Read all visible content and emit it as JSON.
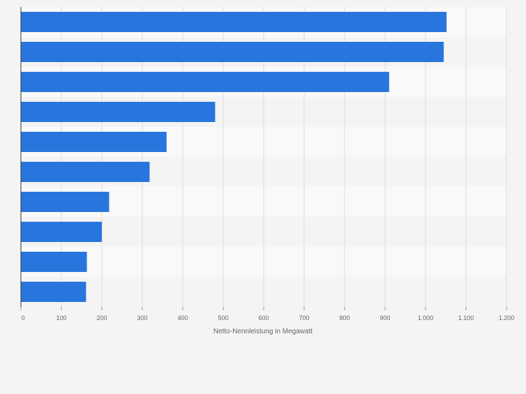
{
  "colors": {
    "background": "#f4f4f4",
    "bar": "#2876dd",
    "band_light": "#f9f9f9",
    "band_dark": "#f4f4f4",
    "grid": "#dddddd",
    "axis": "#333333",
    "tick_text": "#666666"
  },
  "chart_data": {
    "type": "bar",
    "orientation": "horizontal",
    "title": "",
    "xlabel": "Netto-Nennleistung in Megawatt",
    "ylabel": "",
    "categories": [
      "",
      "",
      "",
      "",
      "",
      "",
      "",
      "",
      "",
      ""
    ],
    "values": [
      1052,
      1045,
      910,
      480,
      360,
      318,
      218,
      200,
      163,
      161
    ],
    "xlim": [
      0,
      1200
    ],
    "xticks": [
      0,
      100,
      200,
      300,
      400,
      500,
      600,
      700,
      800,
      900,
      1000,
      1100,
      1200
    ],
    "xtick_labels": [
      "0",
      "100",
      "200",
      "300",
      "400",
      "500",
      "600",
      "700",
      "800",
      "900",
      "1.000",
      "1.100",
      "1.200"
    ],
    "grid": true,
    "legend": "none"
  }
}
